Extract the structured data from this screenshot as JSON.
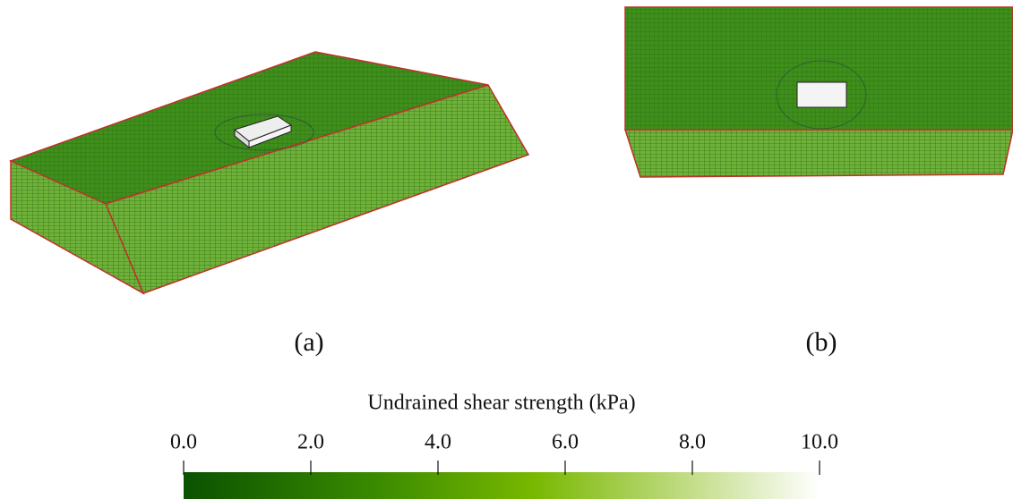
{
  "panels": [
    {
      "label": "(a)"
    },
    {
      "label": "(b)"
    }
  ],
  "colorbar": {
    "title": "Undrained shear strength (kPa)",
    "lim": [
      0,
      10
    ],
    "ticks": [
      {
        "value": 0,
        "label": "0.0"
      },
      {
        "value": 2,
        "label": "2.0"
      },
      {
        "value": 4,
        "label": "4.0"
      },
      {
        "value": 6,
        "label": "6.0"
      },
      {
        "value": 8,
        "label": "8.0"
      },
      {
        "value": 10,
        "label": "10.0"
      }
    ]
  }
}
